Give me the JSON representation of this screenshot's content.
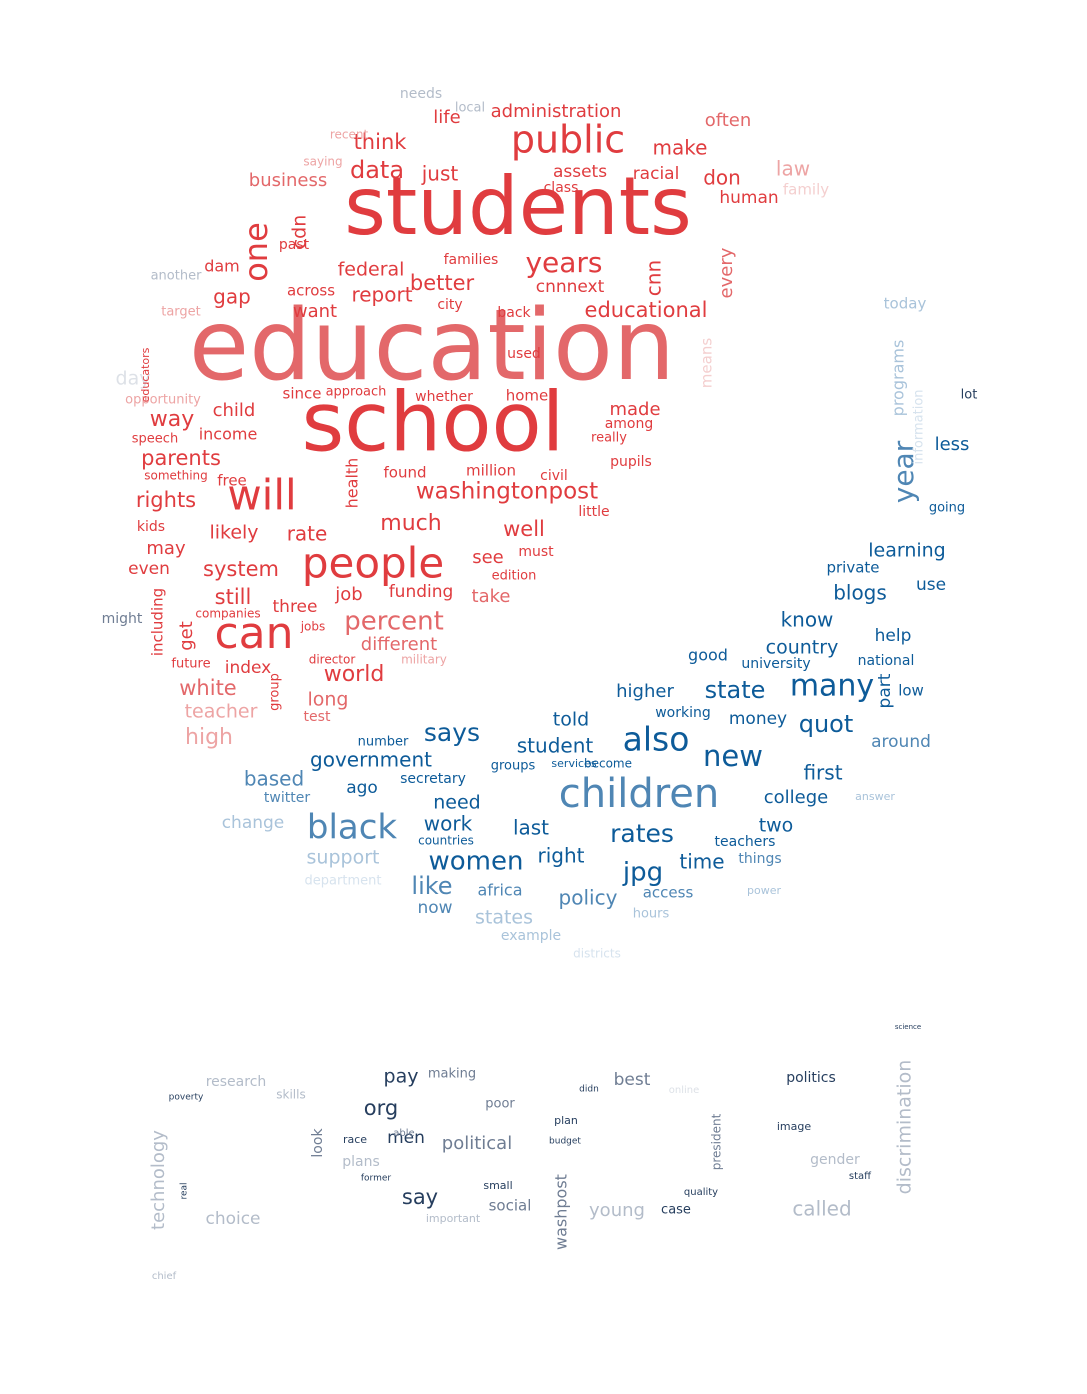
{
  "palette": {
    "red_strong": "#e03c3f",
    "red_mid": "#e3686a",
    "red_light": "#eda4a4",
    "red_faint": "#f4cfcf",
    "blue_strong": "#0d5b99",
    "blue_mid": "#4f86b4",
    "blue_light": "#a9c3da",
    "blue_faint": "#d7e3ee",
    "navy": "#263e5e",
    "slate": "#6f7d93",
    "slate_light": "#b3bcc9",
    "slate_faint": "#dde1e7"
  },
  "words": [
    {
      "t": "education",
      "c": "red_mid"
    },
    {
      "t": "students",
      "c": "red_strong"
    },
    {
      "t": "school",
      "c": "red_strong"
    },
    {
      "t": "will",
      "c": "red_strong"
    },
    {
      "t": "can",
      "c": "red_strong"
    },
    {
      "t": "people",
      "c": "red_strong"
    },
    {
      "t": "public",
      "c": "red_strong"
    },
    {
      "t": "one",
      "c": "red_strong"
    },
    {
      "t": "years",
      "c": "red_strong"
    },
    {
      "t": "washingtonpost",
      "c": "red_strong"
    },
    {
      "t": "percent",
      "c": "red_mid"
    },
    {
      "t": "data",
      "c": "red_strong"
    },
    {
      "t": "just",
      "c": "red_strong"
    },
    {
      "t": "think",
      "c": "red_strong"
    },
    {
      "t": "make",
      "c": "red_strong"
    },
    {
      "t": "administration",
      "c": "red_strong"
    },
    {
      "t": "life",
      "c": "red_strong"
    },
    {
      "t": "assets",
      "c": "red_strong"
    },
    {
      "t": "racial",
      "c": "red_strong"
    },
    {
      "t": "don",
      "c": "red_strong"
    },
    {
      "t": "human",
      "c": "red_strong"
    },
    {
      "t": "often",
      "c": "red_mid"
    },
    {
      "t": "law",
      "c": "red_light"
    },
    {
      "t": "business",
      "c": "red_mid"
    },
    {
      "t": "class",
      "c": "red_strong"
    },
    {
      "t": "cdn",
      "c": "red_strong"
    },
    {
      "t": "federal",
      "c": "red_strong"
    },
    {
      "t": "report",
      "c": "red_strong"
    },
    {
      "t": "better",
      "c": "red_strong"
    },
    {
      "t": "cnnnext",
      "c": "red_strong"
    },
    {
      "t": "cnn",
      "c": "red_strong"
    },
    {
      "t": "every",
      "c": "red_mid"
    },
    {
      "t": "educational",
      "c": "red_strong"
    },
    {
      "t": "dam",
      "c": "red_strong"
    },
    {
      "t": "gap",
      "c": "red_strong"
    },
    {
      "t": "want",
      "c": "red_strong"
    },
    {
      "t": "across",
      "c": "red_strong"
    },
    {
      "t": "past",
      "c": "red_strong"
    },
    {
      "t": "families",
      "c": "red_strong"
    },
    {
      "t": "city",
      "c": "red_strong"
    },
    {
      "t": "back",
      "c": "red_strong"
    },
    {
      "t": "used",
      "c": "red_strong"
    },
    {
      "t": "home",
      "c": "red_strong"
    },
    {
      "t": "whether",
      "c": "red_strong"
    },
    {
      "t": "since",
      "c": "red_strong"
    },
    {
      "t": "approach",
      "c": "red_strong"
    },
    {
      "t": "made",
      "c": "red_strong"
    },
    {
      "t": "among",
      "c": "red_strong"
    },
    {
      "t": "really",
      "c": "red_strong"
    },
    {
      "t": "way",
      "c": "red_strong"
    },
    {
      "t": "child",
      "c": "red_strong"
    },
    {
      "t": "income",
      "c": "red_strong"
    },
    {
      "t": "parents",
      "c": "red_strong"
    },
    {
      "t": "rights",
      "c": "red_strong"
    },
    {
      "t": "free",
      "c": "red_strong"
    },
    {
      "t": "found",
      "c": "red_strong"
    },
    {
      "t": "million",
      "c": "red_strong"
    },
    {
      "t": "civil",
      "c": "red_strong"
    },
    {
      "t": "pupils",
      "c": "red_strong"
    },
    {
      "t": "little",
      "c": "red_strong"
    },
    {
      "t": "well",
      "c": "red_strong"
    },
    {
      "t": "much",
      "c": "red_strong"
    },
    {
      "t": "likely",
      "c": "red_strong"
    },
    {
      "t": "rate",
      "c": "red_strong"
    },
    {
      "t": "health",
      "c": "red_strong"
    },
    {
      "t": "kids",
      "c": "red_strong"
    },
    {
      "t": "may",
      "c": "red_strong"
    },
    {
      "t": "even",
      "c": "red_strong"
    },
    {
      "t": "system",
      "c": "red_strong"
    },
    {
      "t": "still",
      "c": "red_strong"
    },
    {
      "t": "three",
      "c": "red_strong"
    },
    {
      "t": "job",
      "c": "red_strong"
    },
    {
      "t": "funding",
      "c": "red_strong"
    },
    {
      "t": "see",
      "c": "red_strong"
    },
    {
      "t": "take",
      "c": "red_mid"
    },
    {
      "t": "must",
      "c": "red_strong"
    },
    {
      "t": "edition",
      "c": "red_strong"
    },
    {
      "t": "get",
      "c": "red_strong"
    },
    {
      "t": "including",
      "c": "red_strong"
    },
    {
      "t": "different",
      "c": "red_mid"
    },
    {
      "t": "military",
      "c": "red_light"
    },
    {
      "t": "world",
      "c": "red_strong"
    },
    {
      "t": "index",
      "c": "red_strong"
    },
    {
      "t": "future",
      "c": "red_strong"
    },
    {
      "t": "white",
      "c": "red_mid"
    },
    {
      "t": "long",
      "c": "red_mid"
    },
    {
      "t": "test",
      "c": "red_mid"
    },
    {
      "t": "teacher",
      "c": "red_light"
    },
    {
      "t": "high",
      "c": "red_light"
    },
    {
      "t": "group",
      "c": "red_strong"
    },
    {
      "t": "director",
      "c": "red_strong"
    },
    {
      "t": "jobs",
      "c": "red_strong"
    },
    {
      "t": "day",
      "c": "slate_faint"
    },
    {
      "t": "opportunity",
      "c": "red_light"
    },
    {
      "t": "educators",
      "c": "red_strong"
    },
    {
      "t": "speech",
      "c": "red_strong"
    },
    {
      "t": "something",
      "c": "red_strong"
    },
    {
      "t": "companies",
      "c": "red_strong"
    },
    {
      "t": "another",
      "c": "slate_light"
    },
    {
      "t": "target",
      "c": "red_light"
    },
    {
      "t": "recent",
      "c": "red_light"
    },
    {
      "t": "saying",
      "c": "red_light"
    },
    {
      "t": "needs",
      "c": "slate_light"
    },
    {
      "t": "local",
      "c": "slate_light"
    },
    {
      "t": "might",
      "c": "slate"
    },
    {
      "t": "family",
      "c": "red_faint"
    },
    {
      "t": "means",
      "c": "red_faint"
    },
    {
      "t": "year",
      "c": "blue_mid"
    },
    {
      "t": "programs",
      "c": "blue_light"
    },
    {
      "t": "information",
      "c": "blue_faint"
    },
    {
      "t": "today",
      "c": "blue_light"
    },
    {
      "t": "less",
      "c": "blue_strong"
    },
    {
      "t": "lot",
      "c": "navy"
    },
    {
      "t": "going",
      "c": "blue_strong"
    },
    {
      "t": "learning",
      "c": "blue_strong"
    },
    {
      "t": "private",
      "c": "blue_strong"
    },
    {
      "t": "use",
      "c": "blue_strong"
    },
    {
      "t": "blogs",
      "c": "blue_strong"
    },
    {
      "t": "know",
      "c": "blue_strong"
    },
    {
      "t": "help",
      "c": "blue_strong"
    },
    {
      "t": "country",
      "c": "blue_strong"
    },
    {
      "t": "many",
      "c": "blue_strong"
    },
    {
      "t": "national",
      "c": "blue_strong"
    },
    {
      "t": "part",
      "c": "blue_strong"
    },
    {
      "t": "low",
      "c": "blue_strong"
    },
    {
      "t": "good",
      "c": "blue_strong"
    },
    {
      "t": "university",
      "c": "blue_strong"
    },
    {
      "t": "state",
      "c": "blue_strong"
    },
    {
      "t": "higher",
      "c": "blue_strong"
    },
    {
      "t": "quot",
      "c": "blue_strong"
    },
    {
      "t": "also",
      "c": "blue_strong"
    },
    {
      "t": "money",
      "c": "blue_strong"
    },
    {
      "t": "working",
      "c": "blue_strong"
    },
    {
      "t": "told",
      "c": "blue_strong"
    },
    {
      "t": "says",
      "c": "blue_strong"
    },
    {
      "t": "student",
      "c": "blue_strong"
    },
    {
      "t": "new",
      "c": "blue_strong"
    },
    {
      "t": "government",
      "c": "blue_strong"
    },
    {
      "t": "around",
      "c": "blue_mid"
    },
    {
      "t": "first",
      "c": "blue_strong"
    },
    {
      "t": "children",
      "c": "blue_mid"
    },
    {
      "t": "college",
      "c": "blue_strong"
    },
    {
      "t": "two",
      "c": "blue_strong"
    },
    {
      "t": "teachers",
      "c": "blue_strong"
    },
    {
      "t": "rates",
      "c": "blue_strong"
    },
    {
      "t": "things",
      "c": "blue_mid"
    },
    {
      "t": "time",
      "c": "blue_strong"
    },
    {
      "t": "jpg",
      "c": "blue_strong"
    },
    {
      "t": "women",
      "c": "blue_strong"
    },
    {
      "t": "right",
      "c": "blue_strong"
    },
    {
      "t": "last",
      "c": "blue_strong"
    },
    {
      "t": "work",
      "c": "blue_strong"
    },
    {
      "t": "need",
      "c": "blue_strong"
    },
    {
      "t": "black",
      "c": "blue_mid"
    },
    {
      "t": "based",
      "c": "blue_mid"
    },
    {
      "t": "ago",
      "c": "blue_strong"
    },
    {
      "t": "secretary",
      "c": "blue_strong"
    },
    {
      "t": "twitter",
      "c": "blue_mid"
    },
    {
      "t": "change",
      "c": "blue_light"
    },
    {
      "t": "support",
      "c": "blue_light"
    },
    {
      "t": "department",
      "c": "blue_faint"
    },
    {
      "t": "like",
      "c": "blue_mid"
    },
    {
      "t": "africa",
      "c": "blue_mid"
    },
    {
      "t": "policy",
      "c": "blue_mid"
    },
    {
      "t": "now",
      "c": "blue_mid"
    },
    {
      "t": "states",
      "c": "blue_light"
    },
    {
      "t": "access",
      "c": "blue_mid"
    },
    {
      "t": "hours",
      "c": "blue_light"
    },
    {
      "t": "example",
      "c": "blue_light"
    },
    {
      "t": "groups",
      "c": "blue_strong"
    },
    {
      "t": "number",
      "c": "blue_strong"
    },
    {
      "t": "countries",
      "c": "blue_strong"
    },
    {
      "t": "become",
      "c": "blue_strong"
    },
    {
      "t": "services",
      "c": "blue_strong"
    },
    {
      "t": "answer",
      "c": "blue_light"
    },
    {
      "t": "power",
      "c": "blue_light"
    },
    {
      "t": "districts",
      "c": "blue_faint"
    },
    {
      "t": "pay",
      "c": "navy"
    },
    {
      "t": "making",
      "c": "slate"
    },
    {
      "t": "research",
      "c": "slate_light"
    },
    {
      "t": "org",
      "c": "navy"
    },
    {
      "t": "men",
      "c": "navy"
    },
    {
      "t": "political",
      "c": "slate"
    },
    {
      "t": "poor",
      "c": "slate"
    },
    {
      "t": "best",
      "c": "slate"
    },
    {
      "t": "politics",
      "c": "navy"
    },
    {
      "t": "discrimination",
      "c": "slate_light"
    },
    {
      "t": "technology",
      "c": "slate_light"
    },
    {
      "t": "choice",
      "c": "slate_light"
    },
    {
      "t": "say",
      "c": "navy"
    },
    {
      "t": "plans",
      "c": "slate_light"
    },
    {
      "t": "look",
      "c": "slate"
    },
    {
      "t": "washpost",
      "c": "slate"
    },
    {
      "t": "young",
      "c": "slate_light"
    },
    {
      "t": "called",
      "c": "slate_light"
    },
    {
      "t": "president",
      "c": "slate"
    },
    {
      "t": "gender",
      "c": "slate_light"
    },
    {
      "t": "social",
      "c": "slate"
    },
    {
      "t": "small",
      "c": "navy"
    },
    {
      "t": "important",
      "c": "slate_light"
    },
    {
      "t": "case",
      "c": "navy"
    },
    {
      "t": "image",
      "c": "navy"
    },
    {
      "t": "poverty",
      "c": "navy"
    },
    {
      "t": "skills",
      "c": "slate_light"
    },
    {
      "t": "race",
      "c": "navy"
    },
    {
      "t": "plan",
      "c": "navy"
    },
    {
      "t": "budget",
      "c": "navy"
    },
    {
      "t": "quality",
      "c": "navy"
    },
    {
      "t": "staff",
      "c": "navy"
    },
    {
      "t": "online",
      "c": "slate_faint"
    },
    {
      "t": "able",
      "c": "slate"
    },
    {
      "t": "former",
      "c": "navy"
    },
    {
      "t": "real",
      "c": "navy"
    },
    {
      "t": "chief",
      "c": "slate_light"
    },
    {
      "t": "didn",
      "c": "navy"
    },
    {
      "t": "science",
      "c": "navy"
    }
  ]
}
